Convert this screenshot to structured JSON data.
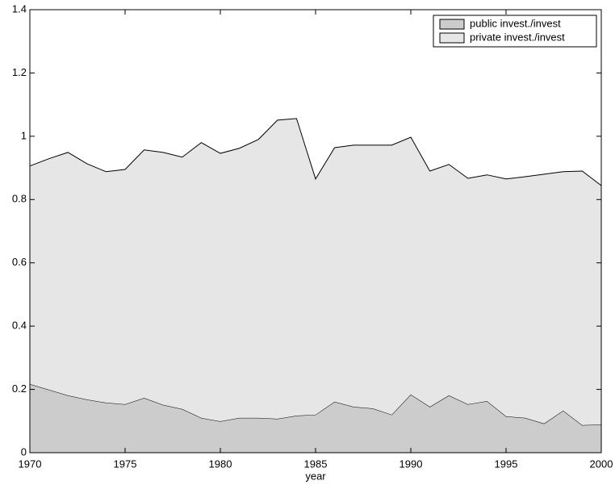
{
  "chart_data": {
    "type": "stacked_area",
    "xlabel": "year",
    "x": [
      1970,
      1971,
      1972,
      1973,
      1974,
      1975,
      1976,
      1977,
      1978,
      1979,
      1980,
      1981,
      1982,
      1983,
      1984,
      1985,
      1986,
      1987,
      1988,
      1989,
      1990,
      1991,
      1992,
      1993,
      1994,
      1995,
      1996,
      1997,
      1998,
      1999,
      2000
    ],
    "series": [
      {
        "name": "public invest./invest",
        "color": "#cccccc",
        "values": [
          0.217,
          0.199,
          0.181,
          0.168,
          0.158,
          0.153,
          0.173,
          0.151,
          0.138,
          0.11,
          0.099,
          0.11,
          0.11,
          0.107,
          0.117,
          0.12,
          0.161,
          0.145,
          0.14,
          0.12,
          0.184,
          0.145,
          0.181,
          0.153,
          0.163,
          0.115,
          0.11,
          0.092,
          0.133,
          0.087,
          0.089
        ]
      },
      {
        "name": "private invest./invest",
        "color": "#e6e6e6",
        "values": [
          0.689,
          0.73,
          0.768,
          0.745,
          0.73,
          0.742,
          0.784,
          0.798,
          0.796,
          0.87,
          0.847,
          0.852,
          0.88,
          0.944,
          0.939,
          0.745,
          0.803,
          0.827,
          0.832,
          0.852,
          0.813,
          0.745,
          0.73,
          0.714,
          0.715,
          0.75,
          0.762,
          0.788,
          0.755,
          0.803,
          0.755
        ]
      }
    ],
    "xlim": [
      1970,
      2000
    ],
    "xticks": [
      1970,
      1975,
      1980,
      1985,
      1990,
      1995,
      2000
    ],
    "ylim": [
      0,
      1.4
    ],
    "yticks": [
      0,
      0.2,
      0.4,
      0.6,
      0.8,
      1,
      1.2,
      1.4
    ],
    "legend": "upper right"
  }
}
